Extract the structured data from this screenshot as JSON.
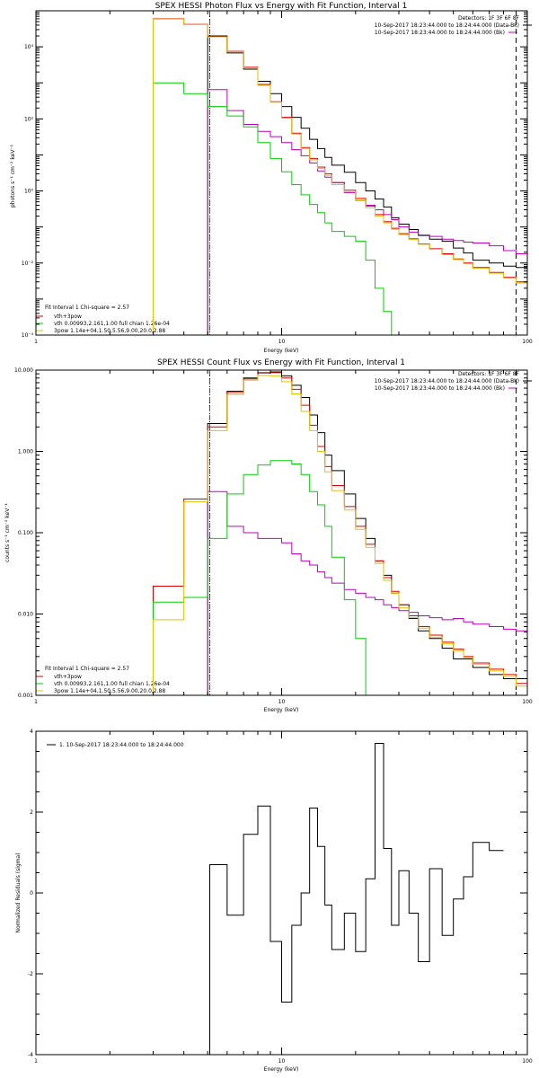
{
  "chart_data": [
    {
      "type": "line",
      "title": "SPEX HESSI Photon Flux vs Energy with Fit Function, Interval 1",
      "xlabel": "Energy (keV)",
      "ylabel": "photons s⁻¹ cm⁻² keV⁻¹",
      "xscale": "log",
      "yscale": "log",
      "xlim": [
        1,
        100
      ],
      "ylim": [
        0.0001,
        100000
      ],
      "x_ticks": [
        {
          "v": 1,
          "label": "1"
        },
        {
          "v": 10,
          "label": "10"
        },
        {
          "v": 100,
          "label": "100"
        }
      ],
      "y_ticks": [
        {
          "v": 0.0001,
          "label": "10⁻⁴"
        },
        {
          "v": 0.01,
          "label": "10⁻²"
        },
        {
          "v": 1,
          "label": "10⁰"
        },
        {
          "v": 100,
          "label": "10²"
        },
        {
          "v": 10000,
          "label": "10⁴"
        }
      ],
      "detectors": "Detectors: 1F 3F 6F 8F",
      "intervals": [
        "10-Sep-2017 18:23:44.000 to 18:24:44.000 (Data-Bk)",
        "10-Sep-2017 18:23:44.000 to 18:24:44.000 (Bk)"
      ],
      "fit_label": "Fit Interval 1   Chi-square = 2.57",
      "vlines": [
        {
          "x": 5.1,
          "style": "dotted",
          "color": "#000000"
        },
        {
          "x": 5.1,
          "style": "dashed",
          "color": "#c000c0"
        },
        {
          "x": 90,
          "style": "dashed",
          "color": "#000000"
        }
      ],
      "edges": [
        3.0,
        4.0,
        5.0,
        6.0,
        7.0,
        8.0,
        9.0,
        10.0,
        11.0,
        12.0,
        13.0,
        14.0,
        15.0,
        16.0,
        18.0,
        20.0,
        22.0,
        24.0,
        26.0,
        28.0,
        30.0,
        33.0,
        36.0,
        40.0,
        45.0,
        50.0,
        55.0,
        60.0,
        70.0,
        80.0,
        90.0,
        100.0
      ],
      "series": [
        {
          "name": "Data-Bk",
          "color": "#000000",
          "step": true,
          "start": 2,
          "values": [
            20000,
            6800,
            2400,
            1100,
            500,
            220,
            110,
            55,
            27,
            15,
            8.5,
            5.2,
            3.3,
            1.7,
            1.0,
            0.6,
            0.36,
            0.18,
            0.12,
            0.085,
            0.058,
            0.046,
            0.04,
            0.026,
            0.019,
            0.012,
            0.01,
            0.0082,
            0.0075
          ]
        },
        {
          "name": "Bk",
          "color": "#c000c0",
          "step": true,
          "start": 2,
          "values": [
            650,
            170,
            70,
            45,
            32,
            22,
            14,
            9.5,
            6.0,
            3.6,
            2.4,
            1.7,
            0.9,
            0.55,
            0.4,
            0.3,
            0.22,
            0.16,
            0.1,
            0.072,
            0.06,
            0.055,
            0.046,
            0.042,
            0.038,
            0.036,
            0.03,
            0.022,
            0.018
          ]
        },
        {
          "name": "vth+3pow",
          "color": "#e00000",
          "step": true,
          "start": 0,
          "values": [
            60000,
            42000,
            19000,
            7500,
            2700,
            900,
            300,
            110,
            40,
            16,
            8.0,
            4.6,
            3.0,
            1.7,
            1.05,
            0.62,
            0.38,
            0.22,
            0.14,
            0.092,
            0.065,
            0.047,
            0.034,
            0.025,
            0.018,
            0.013,
            0.01,
            0.0075,
            0.0055,
            0.004,
            0.003
          ]
        },
        {
          "name": "vth 0.00993,2.161,1.00   full chian 1.26e-04",
          "color": "#00d000",
          "step": true,
          "start": 0,
          "values": [
            1000,
            500,
            220,
            120,
            60,
            22,
            8,
            3.4,
            1.5,
            0.78,
            0.42,
            0.25,
            0.13,
            0.075,
            0.055,
            0.04,
            0.012,
            0.002,
            0.00045,
            8e-05,
            1e-05
          ]
        },
        {
          "name": "3pow 1.14e+04,1.50,5.56,9.00,20.0,2.88",
          "color": "#e8c000",
          "step": true,
          "start": 0,
          "values": [
            59000,
            41500,
            18800,
            7300,
            2600,
            860,
            290,
            105,
            38,
            15,
            7.3,
            4.2,
            2.7,
            1.5,
            0.95,
            0.56,
            0.34,
            0.2,
            0.13,
            0.086,
            0.062,
            0.045,
            0.033,
            0.024,
            0.017,
            0.0125,
            0.0095,
            0.0071,
            0.0052,
            0.0038,
            0.0028
          ]
        }
      ]
    },
    {
      "type": "line",
      "title": "SPEX HESSI Count Flux vs Energy with Fit Function, Interval 1",
      "xlabel": "Energy (keV)",
      "ylabel": "counts s⁻¹ cm⁻² keV⁻¹",
      "xscale": "log",
      "yscale": "log",
      "xlim": [
        1,
        100
      ],
      "ylim": [
        0.001,
        10
      ],
      "x_ticks": [
        {
          "v": 1,
          "label": "1"
        },
        {
          "v": 10,
          "label": "10"
        },
        {
          "v": 100,
          "label": "100"
        }
      ],
      "y_ticks": [
        {
          "v": 0.001,
          "label": "0.001"
        },
        {
          "v": 0.01,
          "label": "0.010"
        },
        {
          "v": 0.1,
          "label": "0.100"
        },
        {
          "v": 1,
          "label": "1.000"
        },
        {
          "v": 10,
          "label": "10.000"
        }
      ],
      "detectors": "Detectors: 1F 3F 6F 8F",
      "intervals": [
        "10-Sep-2017 18:23:44.000 to 18:24:44.000 (Data-Bk)",
        "10-Sep-2017 18:23:44.000 to 18:24:44.000 (Bk)"
      ],
      "fit_label": "Fit Interval 1   Chi-square = 2.57",
      "vlines": [
        {
          "x": 5.1,
          "style": "dotted",
          "color": "#000000"
        },
        {
          "x": 5.1,
          "style": "dashed",
          "color": "#c000c0"
        },
        {
          "x": 90,
          "style": "dashed",
          "color": "#000000"
        }
      ],
      "edges": [
        3.0,
        4.0,
        5.0,
        6.0,
        7.0,
        8.0,
        9.0,
        10.0,
        11.0,
        12.0,
        13.0,
        14.0,
        15.0,
        16.0,
        18.0,
        20.0,
        22.0,
        24.0,
        26.0,
        28.0,
        30.0,
        33.0,
        36.0,
        40.0,
        45.0,
        50.0,
        55.0,
        60.0,
        70.0,
        80.0,
        90.0,
        100.0
      ],
      "series": [
        {
          "name": "Data-Bk",
          "color": "#000000",
          "step": true,
          "start": 2,
          "values": [
            2.2,
            5.5,
            8.0,
            9.3,
            9.5,
            8.5,
            6.5,
            4.6,
            2.8,
            1.7,
            0.9,
            0.58,
            0.3,
            0.15,
            0.085,
            0.045,
            0.03,
            0.018,
            0.013,
            0.0088,
            0.0062,
            0.005,
            0.0038,
            0.0028,
            0.0028,
            0.0022,
            0.0018,
            0.0016,
            0.0016
          ]
        },
        {
          "name": "Bk",
          "color": "#c000c0",
          "step": true,
          "start": 2,
          "values": [
            0.32,
            0.12,
            0.1,
            0.085,
            0.085,
            0.075,
            0.055,
            0.045,
            0.04,
            0.033,
            0.028,
            0.024,
            0.02,
            0.018,
            0.016,
            0.015,
            0.013,
            0.012,
            0.011,
            0.0105,
            0.0095,
            0.009,
            0.0085,
            0.0088,
            0.008,
            0.0075,
            0.007,
            0.0065,
            0.0062
          ]
        },
        {
          "name": "vth+3pow",
          "color": "#e00000",
          "step": true,
          "start": 0,
          "values": [
            0.022,
            0.26,
            2.0,
            5.3,
            7.8,
            9.2,
            9.3,
            8.0,
            5.8,
            3.7,
            2.1,
            1.15,
            0.65,
            0.38,
            0.21,
            0.12,
            0.072,
            0.045,
            0.028,
            0.019,
            0.013,
            0.0095,
            0.007,
            0.0055,
            0.0045,
            0.0037,
            0.003,
            0.0025,
            0.0021,
            0.0018,
            0.0014
          ]
        },
        {
          "name": "vth 0.00993,2.161,1.00   full chian 1.26e-04",
          "color": "#00d000",
          "step": true,
          "start": 0,
          "values": [
            0.014,
            0.016,
            0.085,
            0.3,
            0.52,
            0.68,
            0.77,
            0.77,
            0.7,
            0.52,
            0.32,
            0.22,
            0.12,
            0.05,
            0.015,
            0.005,
            0.0009
          ]
        },
        {
          "name": "3pow 1.14e+04,1.50,5.56,9.00,20.0,2.88",
          "color": "#e8c000",
          "step": true,
          "start": 0,
          "values": [
            0.0085,
            0.24,
            1.8,
            5.0,
            7.5,
            8.6,
            8.5,
            7.2,
            5.1,
            3.1,
            1.8,
            1.0,
            0.56,
            0.33,
            0.19,
            0.11,
            0.066,
            0.042,
            0.026,
            0.018,
            0.012,
            0.009,
            0.0067,
            0.0052,
            0.0043,
            0.0035,
            0.0029,
            0.0024,
            0.002,
            0.0017,
            0.0013
          ]
        }
      ]
    },
    {
      "type": "line",
      "title": "",
      "xlabel": "Energy (keV)",
      "ylabel": "Normalized Residuals (sigma)",
      "xscale": "log",
      "yscale": "linear",
      "xlim": [
        1,
        100
      ],
      "ylim": [
        -4,
        4
      ],
      "x_ticks": [
        {
          "v": 1,
          "label": "1"
        },
        {
          "v": 10,
          "label": "10"
        },
        {
          "v": 100,
          "label": "100"
        }
      ],
      "y_ticks": [
        {
          "v": -4,
          "label": "-4"
        },
        {
          "v": -2,
          "label": "-2"
        },
        {
          "v": 0,
          "label": "0"
        },
        {
          "v": 2,
          "label": "2"
        },
        {
          "v": 4,
          "label": "4"
        }
      ],
      "edges": [
        5.1,
        6.0,
        7.0,
        8.0,
        9.0,
        10.0,
        11.0,
        12.0,
        13.0,
        14.0,
        15.0,
        16.0,
        18.0,
        20.0,
        22.0,
        24.0,
        26.0,
        28.0,
        30.0,
        33.0,
        36.0,
        40.0,
        45.0,
        50.0,
        55.0,
        60.0,
        70.0,
        80.0,
        90.0,
        100.0
      ],
      "series": [
        {
          "name": "1. 10-Sep-2017 18:23:44.000 to 18:24:44.000",
          "color": "#000000",
          "step": true,
          "start": 0,
          "drop_start": -4,
          "values": [
            0.7,
            -0.55,
            1.45,
            2.15,
            -1.2,
            -2.7,
            -0.8,
            0.0,
            2.1,
            1.15,
            -0.3,
            -1.4,
            -0.5,
            -1.45,
            0.35,
            3.7,
            1.1,
            -0.8,
            0.55,
            -0.5,
            -1.7,
            0.6,
            -1.05,
            -0.15,
            0.4,
            1.25,
            1.05
          ]
        }
      ],
      "hline": 0
    }
  ]
}
